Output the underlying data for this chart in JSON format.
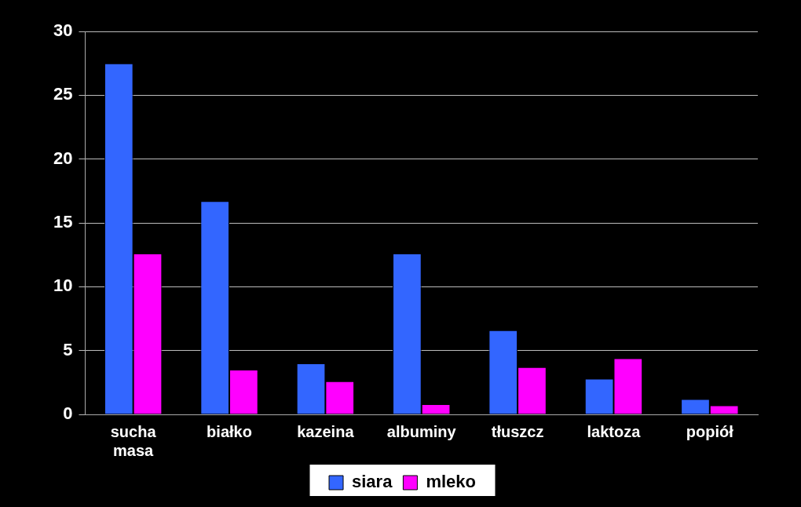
{
  "chart_data": {
    "type": "bar",
    "categories": [
      "sucha masa",
      "białko",
      "kazeina",
      "albuminy",
      "tłuszcz",
      "laktoza",
      "popiół"
    ],
    "series": [
      {
        "name": "siara",
        "color": "#3366ff",
        "values": [
          27.5,
          16.7,
          4.0,
          12.6,
          6.6,
          2.8,
          1.2
        ]
      },
      {
        "name": "mleko",
        "color": "#ff00ff",
        "values": [
          12.6,
          3.5,
          2.6,
          0.8,
          3.7,
          4.4,
          0.7
        ]
      }
    ],
    "ylim": [
      0,
      30
    ],
    "yticks": [
      0,
      5,
      10,
      15,
      20,
      25,
      30
    ],
    "grid": "y",
    "legend": "bottom"
  }
}
